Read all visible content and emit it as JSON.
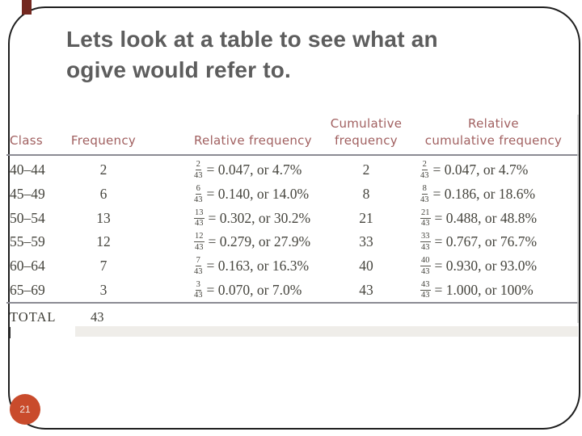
{
  "slide": {
    "title": {
      "line1": "Lets look at a table to see what an",
      "line2": "ogive would refer to."
    },
    "page_number": "21"
  },
  "colors": {
    "title_text": "#5d5d5d",
    "table_header_text": "#a16060",
    "table_body_text": "#46453e",
    "rule": "#8b8b93",
    "page_badge": "#c94b2c",
    "corner_accent": "#732820"
  },
  "table": {
    "headers": {
      "class": "Class",
      "frequency": "Frequency",
      "relative_frequency": "Relative frequency",
      "cumulative_line1": "Cumulative",
      "cumulative_line2": "frequency",
      "relative_cumulative_line1": "Relative",
      "relative_cumulative_line2": "cumulative frequency"
    },
    "rows": [
      {
        "class": "40–44",
        "freq": "2",
        "rf_num": "2",
        "rf_den": "43",
        "rf_rest": "= 0.047, or 4.7%",
        "cf": "2",
        "rcf_num": "2",
        "rcf_den": "43",
        "rcf_rest": "= 0.047, or 4.7%"
      },
      {
        "class": "45–49",
        "freq": "6",
        "rf_num": "6",
        "rf_den": "43",
        "rf_rest": "= 0.140, or 14.0%",
        "cf": "8",
        "rcf_num": "8",
        "rcf_den": "43",
        "rcf_rest": "= 0.186, or 18.6%"
      },
      {
        "class": "50–54",
        "freq": "13",
        "rf_num": "13",
        "rf_den": "43",
        "rf_rest": "= 0.302, or 30.2%",
        "cf": "21",
        "rcf_num": "21",
        "rcf_den": "43",
        "rcf_rest": "= 0.488, or 48.8%"
      },
      {
        "class": "55–59",
        "freq": "12",
        "rf_num": "12",
        "rf_den": "43",
        "rf_rest": "= 0.279, or 27.9%",
        "cf": "33",
        "rcf_num": "33",
        "rcf_den": "43",
        "rcf_rest": "= 0.767, or 76.7%"
      },
      {
        "class": "60–64",
        "freq": "7",
        "rf_num": "7",
        "rf_den": "43",
        "rf_rest": "= 0.163, or 16.3%",
        "cf": "40",
        "rcf_num": "40",
        "rcf_den": "43",
        "rcf_rest": "= 0.930, or 93.0%"
      },
      {
        "class": "65–69",
        "freq": "3",
        "rf_num": "3",
        "rf_den": "43",
        "rf_rest": "= 0.070, or 7.0%",
        "cf": "43",
        "rcf_num": "43",
        "rcf_den": "43",
        "rcf_rest": "= 1.000, or 100%"
      }
    ],
    "total_label": "TOTAL",
    "total_value": "43"
  },
  "chart_data": {
    "type": "table",
    "columns": [
      "Class",
      "Frequency",
      "Relative frequency",
      "Cumulative frequency",
      "Relative cumulative frequency"
    ],
    "rows": [
      [
        "40–44",
        "2",
        "2/43 = 0.047, or 4.7%",
        "2",
        "2/43 = 0.047, or 4.7%"
      ],
      [
        "45–49",
        "6",
        "6/43 = 0.140, or 14.0%",
        "8",
        "8/43 = 0.186, or 18.6%"
      ],
      [
        "50–54",
        "13",
        "13/43 = 0.302, or 30.2%",
        "21",
        "21/43 = 0.488, or 48.8%"
      ],
      [
        "55–59",
        "12",
        "12/43 = 0.279, or 27.9%",
        "33",
        "33/43 = 0.767, or 76.7%"
      ],
      [
        "60–64",
        "7",
        "7/43 = 0.163, or 16.3%",
        "40",
        "40/43 = 0.930, or 93.0%"
      ],
      [
        "65–69",
        "3",
        "3/43 = 0.070, or 7.0%",
        "43",
        "43/43 = 1.000, or 100%"
      ]
    ],
    "total_row": [
      "TOTAL",
      "43"
    ]
  }
}
